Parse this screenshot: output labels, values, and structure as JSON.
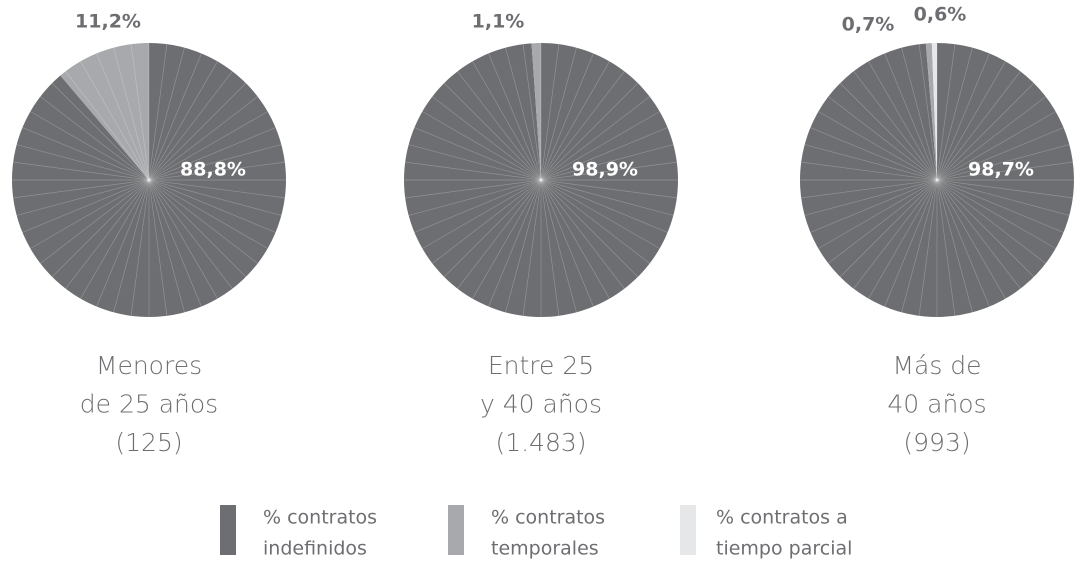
{
  "chart_data": [
    {
      "type": "pie",
      "title_lines": [
        "Menores",
        "de 25 años",
        "(125)"
      ],
      "categories": [
        "% contratos indefinidos",
        "% contratos temporales"
      ],
      "values": [
        88.8,
        11.2
      ],
      "value_labels": [
        "88,8%",
        "11,2%"
      ],
      "colors": [
        "#6d6e71",
        "#a7a9ac"
      ]
    },
    {
      "type": "pie",
      "title_lines": [
        "Entre 25",
        "y 40 años",
        "(1.483)"
      ],
      "categories": [
        "% contratos indefinidos",
        "% contratos temporales"
      ],
      "values": [
        98.9,
        1.1
      ],
      "value_labels": [
        "98,9%",
        "1,1%"
      ],
      "colors": [
        "#6d6e71",
        "#a7a9ac"
      ]
    },
    {
      "type": "pie",
      "title_lines": [
        "Más de",
        "40 años",
        "(993)"
      ],
      "categories": [
        "% contratos indefinidos",
        "% contratos temporales",
        "% contratos a tiempo parcial"
      ],
      "values": [
        98.7,
        0.7,
        0.6
      ],
      "value_labels": [
        "98,7%",
        "0,7%",
        "0,6%"
      ],
      "colors": [
        "#6d6e71",
        "#a7a9ac",
        "#e6e7e8"
      ]
    }
  ],
  "legend": [
    {
      "name_lines": [
        "% contratos",
        "indefinidos"
      ],
      "color": "#6d6e71"
    },
    {
      "name_lines": [
        "% contratos",
        "temporales"
      ],
      "color": "#a7a9ac"
    },
    {
      "name_lines": [
        "% contratos a",
        "tiempo parcial"
      ],
      "color": "#e6e7e8"
    }
  ]
}
